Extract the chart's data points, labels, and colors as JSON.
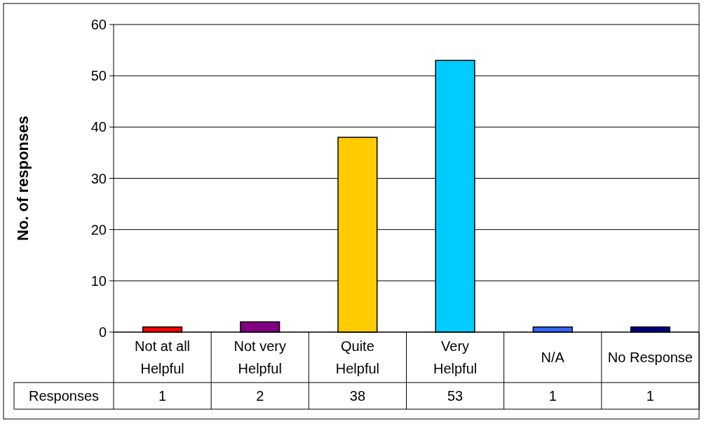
{
  "chart_data": {
    "type": "bar",
    "ylabel": "No. of responses",
    "categories": [
      "Not at all Helpful",
      "Not very Helpful",
      "Quite Helpful",
      "Very Helpful",
      "N/A",
      "No Response"
    ],
    "series": [
      {
        "name": "Responses",
        "colors": [
          "#ff0000",
          "#800080",
          "#ffcc00",
          "#00ccff",
          "#3366ff",
          "#000080"
        ],
        "values": [
          1,
          2,
          38,
          53,
          1,
          1
        ]
      }
    ],
    "ylim": [
      0,
      60
    ],
    "yticks": [
      0,
      10,
      20,
      30,
      40,
      50,
      60
    ],
    "grid": "y",
    "legend": "bottom left",
    "data_labels": true
  }
}
